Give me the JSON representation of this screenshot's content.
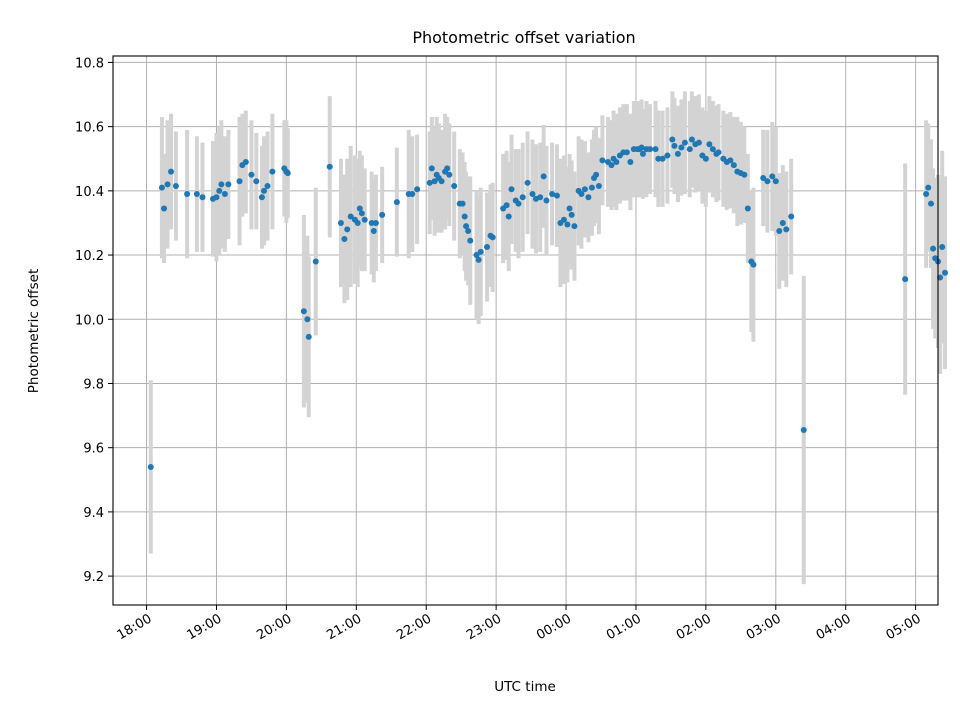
{
  "chart_data": {
    "type": "scatter",
    "title": "Photometric offset variation",
    "xlabel": "UTC time",
    "ylabel": "Photometric offset",
    "ylim": [
      9.11,
      10.82
    ],
    "xlim": [
      -0.48,
      11.32
    ],
    "x_unit": "hours after 18:00 UTC",
    "xticks": [
      {
        "value": 0,
        "label": "18:00"
      },
      {
        "value": 1,
        "label": "19:00"
      },
      {
        "value": 2,
        "label": "20:00"
      },
      {
        "value": 3,
        "label": "21:00"
      },
      {
        "value": 4,
        "label": "22:00"
      },
      {
        "value": 5,
        "label": "23:00"
      },
      {
        "value": 6,
        "label": "00:00"
      },
      {
        "value": 7,
        "label": "01:00"
      },
      {
        "value": 8,
        "label": "02:00"
      },
      {
        "value": 9,
        "label": "03:00"
      },
      {
        "value": 10,
        "label": "04:00"
      },
      {
        "value": 11,
        "label": "05:00"
      }
    ],
    "yticks": [
      {
        "value": 9.2,
        "label": "9.2"
      },
      {
        "value": 9.4,
        "label": "9.4"
      },
      {
        "value": 9.6,
        "label": "9.6"
      },
      {
        "value": 9.8,
        "label": "9.8"
      },
      {
        "value": 10.0,
        "label": "10.0"
      },
      {
        "value": 10.2,
        "label": "10.2"
      },
      {
        "value": 10.4,
        "label": "10.4"
      },
      {
        "value": 10.6,
        "label": "10.6"
      },
      {
        "value": 10.8,
        "label": "10.8"
      }
    ],
    "grid": true,
    "colors": {
      "points": "#1f77b4",
      "errorbars": "#d3d3d3",
      "grid": "#b0b0b0"
    },
    "series": [
      {
        "points": [
          [
            0.06,
            9.54,
            0.27
          ],
          [
            0.22,
            10.41,
            0.22
          ],
          [
            0.25,
            10.345,
            0.17
          ],
          [
            0.3,
            10.42,
            0.2
          ],
          [
            0.35,
            10.46,
            0.18
          ],
          [
            0.42,
            10.415,
            0.17
          ],
          [
            0.58,
            10.39,
            0.2
          ],
          [
            0.72,
            10.39,
            0.18
          ],
          [
            0.8,
            10.38,
            0.17
          ],
          [
            0.95,
            10.375,
            0.18
          ],
          [
            1.0,
            10.38,
            0.2
          ],
          [
            1.04,
            10.4,
            0.2
          ],
          [
            1.07,
            10.42,
            0.2
          ],
          [
            1.12,
            10.39,
            0.18
          ],
          [
            1.17,
            10.42,
            0.17
          ],
          [
            1.33,
            10.43,
            0.2
          ],
          [
            1.37,
            10.48,
            0.16
          ],
          [
            1.42,
            10.49,
            0.16
          ],
          [
            1.5,
            10.45,
            0.17
          ],
          [
            1.57,
            10.43,
            0.15
          ],
          [
            1.65,
            10.38,
            0.16
          ],
          [
            1.68,
            10.4,
            0.17
          ],
          [
            1.73,
            10.415,
            0.17
          ],
          [
            1.8,
            10.46,
            0.18
          ],
          [
            1.97,
            10.47,
            0.15
          ],
          [
            2.0,
            10.46,
            0.16
          ],
          [
            2.02,
            10.455,
            0.14
          ],
          [
            2.25,
            10.025,
            0.3
          ],
          [
            2.3,
            10.0,
            0.26
          ],
          [
            2.32,
            9.945,
            0.25
          ],
          [
            2.42,
            10.18,
            0.23
          ],
          [
            2.62,
            10.475,
            0.22
          ],
          [
            2.78,
            10.3,
            0.2
          ],
          [
            2.83,
            10.25,
            0.2
          ],
          [
            2.87,
            10.28,
            0.22
          ],
          [
            2.92,
            10.32,
            0.22
          ],
          [
            2.98,
            10.31,
            0.2
          ],
          [
            3.02,
            10.3,
            0.2
          ],
          [
            3.05,
            10.345,
            0.18
          ],
          [
            3.08,
            10.33,
            0.18
          ],
          [
            3.12,
            10.31,
            0.16
          ],
          [
            3.22,
            10.3,
            0.16
          ],
          [
            3.25,
            10.275,
            0.16
          ],
          [
            3.28,
            10.3,
            0.15
          ],
          [
            3.37,
            10.325,
            0.15
          ],
          [
            3.58,
            10.365,
            0.17
          ],
          [
            3.75,
            10.39,
            0.2
          ],
          [
            3.8,
            10.39,
            0.18
          ],
          [
            3.87,
            10.405,
            0.17
          ],
          [
            4.05,
            10.425,
            0.16
          ],
          [
            4.08,
            10.47,
            0.16
          ],
          [
            4.12,
            10.43,
            0.17
          ],
          [
            4.15,
            10.45,
            0.18
          ],
          [
            4.18,
            10.44,
            0.17
          ],
          [
            4.22,
            10.43,
            0.16
          ],
          [
            4.27,
            10.46,
            0.18
          ],
          [
            4.3,
            10.47,
            0.16
          ],
          [
            4.33,
            10.45,
            0.16
          ],
          [
            4.4,
            10.415,
            0.17
          ],
          [
            4.48,
            10.36,
            0.17
          ],
          [
            4.52,
            10.36,
            0.16
          ],
          [
            4.55,
            10.32,
            0.17
          ],
          [
            4.57,
            10.29,
            0.17
          ],
          [
            4.6,
            10.275,
            0.17
          ],
          [
            4.63,
            10.245,
            0.2
          ],
          [
            4.72,
            10.2,
            0.2
          ],
          [
            4.75,
            10.185,
            0.2
          ],
          [
            4.78,
            10.21,
            0.2
          ],
          [
            4.87,
            10.225,
            0.17
          ],
          [
            4.92,
            10.26,
            0.16
          ],
          [
            4.95,
            10.255,
            0.17
          ],
          [
            5.1,
            10.345,
            0.17
          ],
          [
            5.15,
            10.355,
            0.17
          ],
          [
            5.18,
            10.32,
            0.17
          ],
          [
            5.22,
            10.405,
            0.17
          ],
          [
            5.28,
            10.37,
            0.16
          ],
          [
            5.32,
            10.36,
            0.17
          ],
          [
            5.38,
            10.38,
            0.17
          ],
          [
            5.45,
            10.425,
            0.16
          ],
          [
            5.52,
            10.39,
            0.17
          ],
          [
            5.57,
            10.375,
            0.17
          ],
          [
            5.63,
            10.38,
            0.17
          ],
          [
            5.68,
            10.445,
            0.16
          ],
          [
            5.72,
            10.37,
            0.17
          ],
          [
            5.8,
            10.39,
            0.16
          ],
          [
            5.87,
            10.385,
            0.16
          ],
          [
            5.92,
            10.3,
            0.2
          ],
          [
            5.97,
            10.31,
            0.2
          ],
          [
            6.02,
            10.295,
            0.18
          ],
          [
            6.05,
            10.345,
            0.17
          ],
          [
            6.08,
            10.325,
            0.17
          ],
          [
            6.12,
            10.29,
            0.17
          ],
          [
            6.18,
            10.4,
            0.17
          ],
          [
            6.22,
            10.39,
            0.17
          ],
          [
            6.27,
            10.405,
            0.15
          ],
          [
            6.32,
            10.38,
            0.14
          ],
          [
            6.37,
            10.41,
            0.15
          ],
          [
            6.4,
            10.44,
            0.15
          ],
          [
            6.43,
            10.45,
            0.15
          ],
          [
            6.47,
            10.415,
            0.15
          ],
          [
            6.52,
            10.495,
            0.14
          ],
          [
            6.6,
            10.49,
            0.14
          ],
          [
            6.65,
            10.48,
            0.14
          ],
          [
            6.68,
            10.5,
            0.15
          ],
          [
            6.72,
            10.49,
            0.15
          ],
          [
            6.77,
            10.51,
            0.15
          ],
          [
            6.82,
            10.52,
            0.15
          ],
          [
            6.87,
            10.52,
            0.15
          ],
          [
            6.92,
            10.49,
            0.15
          ],
          [
            6.97,
            10.53,
            0.15
          ],
          [
            7.02,
            10.53,
            0.15
          ],
          [
            7.05,
            10.53,
            0.15
          ],
          [
            7.08,
            10.535,
            0.15
          ],
          [
            7.1,
            10.515,
            0.14
          ],
          [
            7.15,
            10.53,
            0.15
          ],
          [
            7.2,
            10.53,
            0.14
          ],
          [
            7.28,
            10.53,
            0.15
          ],
          [
            7.32,
            10.5,
            0.15
          ],
          [
            7.38,
            10.5,
            0.15
          ],
          [
            7.45,
            10.51,
            0.15
          ],
          [
            7.52,
            10.56,
            0.15
          ],
          [
            7.55,
            10.54,
            0.15
          ],
          [
            7.6,
            10.515,
            0.15
          ],
          [
            7.65,
            10.535,
            0.15
          ],
          [
            7.7,
            10.55,
            0.16
          ],
          [
            7.77,
            10.53,
            0.15
          ],
          [
            7.8,
            10.56,
            0.15
          ],
          [
            7.85,
            10.545,
            0.15
          ],
          [
            7.9,
            10.55,
            0.15
          ],
          [
            7.95,
            10.51,
            0.15
          ],
          [
            8.0,
            10.5,
            0.15
          ],
          [
            8.05,
            10.545,
            0.15
          ],
          [
            8.1,
            10.53,
            0.15
          ],
          [
            8.15,
            10.515,
            0.15
          ],
          [
            8.18,
            10.52,
            0.15
          ],
          [
            8.25,
            10.5,
            0.15
          ],
          [
            8.3,
            10.49,
            0.15
          ],
          [
            8.35,
            10.495,
            0.15
          ],
          [
            8.4,
            10.48,
            0.15
          ],
          [
            8.45,
            10.46,
            0.17
          ],
          [
            8.5,
            10.455,
            0.16
          ],
          [
            8.55,
            10.45,
            0.15
          ],
          [
            8.6,
            10.345,
            0.17
          ],
          [
            8.65,
            10.18,
            0.22
          ],
          [
            8.68,
            10.17,
            0.24
          ],
          [
            8.82,
            10.44,
            0.15
          ],
          [
            8.88,
            10.43,
            0.16
          ],
          [
            8.95,
            10.445,
            0.17
          ],
          [
            9.0,
            10.43,
            0.17
          ],
          [
            9.05,
            10.275,
            0.18
          ],
          [
            9.1,
            10.3,
            0.18
          ],
          [
            9.15,
            10.28,
            0.18
          ],
          [
            9.22,
            10.32,
            0.18
          ],
          [
            9.4,
            9.655,
            0.48
          ],
          [
            10.85,
            10.125,
            0.36
          ],
          [
            11.15,
            10.39,
            0.23
          ],
          [
            11.18,
            10.41,
            0.2
          ],
          [
            11.22,
            10.36,
            0.2
          ],
          [
            11.25,
            10.22,
            0.25
          ],
          [
            11.28,
            10.19,
            0.25
          ],
          [
            11.32,
            10.18,
            0.27
          ],
          [
            11.35,
            10.13,
            0.3
          ],
          [
            11.38,
            10.225,
            0.3
          ],
          [
            11.42,
            10.145,
            0.3
          ]
        ]
      }
    ]
  }
}
